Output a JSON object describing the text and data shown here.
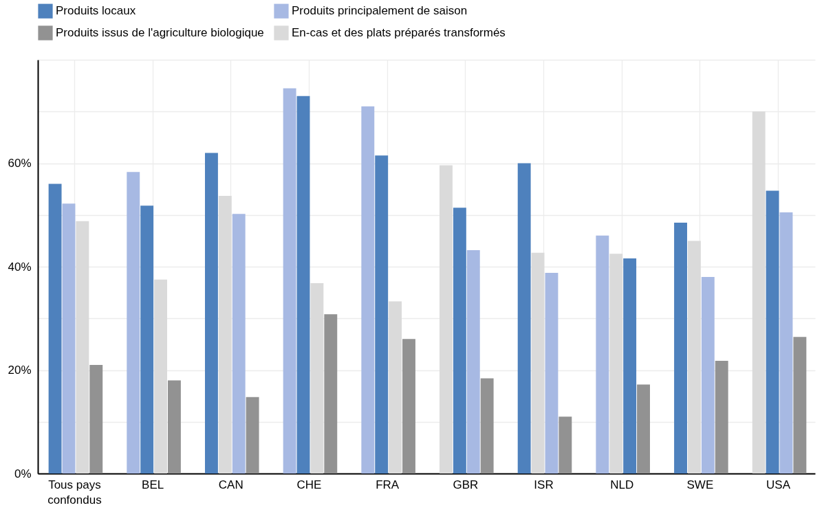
{
  "chart_data": {
    "type": "bar",
    "categories": [
      "Tous pays confondus",
      "BEL",
      "CAN",
      "CHE",
      "FRA",
      "GBR",
      "ISR",
      "NLD",
      "SWE",
      "USA"
    ],
    "series": [
      {
        "name": "Produits locaux",
        "color": "#4e81bd",
        "values": [
          56,
          51.8,
          62,
          73,
          61.5,
          51.4,
          60,
          41.6,
          48.5,
          54.7
        ]
      },
      {
        "name": "Produits principalement de saison",
        "color": "#a7b9e3",
        "values": [
          52.2,
          58.3,
          50.2,
          74.5,
          71,
          43.2,
          38.8,
          46,
          38,
          50.5
        ]
      },
      {
        "name": "Produits issus de l'agriculture biologique",
        "color": "#929292",
        "values": [
          21,
          18,
          14.8,
          30.8,
          26,
          18.4,
          11,
          17.2,
          21.8,
          26.4
        ]
      },
      {
        "name": "En-cas et des plats préparés transformés",
        "color": "#dadada",
        "values": [
          48.8,
          37.5,
          53.7,
          36.8,
          33.3,
          59.6,
          42.7,
          42.5,
          45,
          70
        ]
      }
    ],
    "ylim": [
      0,
      80
    ],
    "yticks": [
      {
        "value": 0,
        "label": "0%"
      },
      {
        "value": 10,
        "label": null
      },
      {
        "value": 20,
        "label": "20%"
      },
      {
        "value": 30,
        "label": null
      },
      {
        "value": 40,
        "label": "40%"
      },
      {
        "value": 50,
        "label": null
      },
      {
        "value": 60,
        "label": "60%"
      },
      {
        "value": 70,
        "label": null
      },
      {
        "value": 80,
        "label": null
      }
    ],
    "grid": true,
    "legend": "top"
  }
}
